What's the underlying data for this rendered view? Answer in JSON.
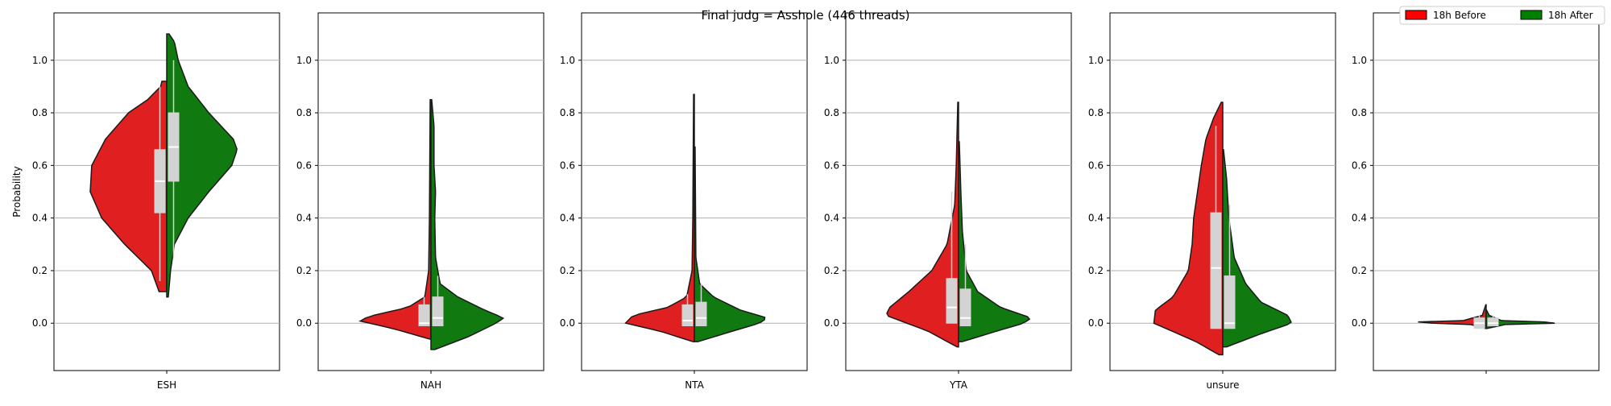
{
  "figure": {
    "suptitle": "Final judg = Asshole (446 threads)"
  },
  "legend": {
    "placement": "top-right",
    "entries": [
      {
        "label": "18h Before",
        "color": "#ff0000"
      },
      {
        "label": "18h After",
        "color": "#008000"
      }
    ]
  },
  "colors": {
    "before_fill": "#e02020",
    "after_fill": "#107a10",
    "box_fill": "#d3d3d3",
    "grid": "#b0b0b0"
  },
  "chart_data": {
    "type": "split-violin",
    "ylabel": "Probability",
    "ylim": [
      -0.18,
      1.18
    ],
    "yticks": [
      "0.0",
      "0.2",
      "0.4",
      "0.6",
      "0.8",
      "1.0"
    ],
    "grid": "horizontal",
    "panels": [
      {
        "category": "ESH",
        "before": {
          "range": [
            0.12,
            0.92
          ],
          "box": {
            "q1": 0.42,
            "median": 0.54,
            "q3": 0.66
          },
          "whisker": [
            0.16,
            0.9
          ],
          "profile": [
            [
              0.02,
              0.02
            ],
            [
              0.12,
              0.1
            ],
            [
              0.2,
              0.2
            ],
            [
              0.3,
              0.55
            ],
            [
              0.4,
              0.85
            ],
            [
              0.5,
              1.0
            ],
            [
              0.6,
              0.98
            ],
            [
              0.7,
              0.8
            ],
            [
              0.8,
              0.5
            ],
            [
              0.85,
              0.25
            ],
            [
              0.9,
              0.08
            ],
            [
              0.97,
              0.02
            ]
          ]
        },
        "after": {
          "range": [
            0.1,
            1.1
          ],
          "box": {
            "q1": 0.54,
            "median": 0.67,
            "q3": 0.8
          },
          "whisker": [
            0.25,
            1.0
          ],
          "profile": [
            [
              0.1,
              0.02
            ],
            [
              0.2,
              0.05
            ],
            [
              0.3,
              0.1
            ],
            [
              0.4,
              0.28
            ],
            [
              0.5,
              0.55
            ],
            [
              0.6,
              0.85
            ],
            [
              0.66,
              0.92
            ],
            [
              0.7,
              0.87
            ],
            [
              0.8,
              0.55
            ],
            [
              0.9,
              0.28
            ],
            [
              1.0,
              0.15
            ],
            [
              1.07,
              0.1
            ],
            [
              1.1,
              0.03
            ]
          ]
        }
      },
      {
        "category": "NAH",
        "before": {
          "range": [
            -0.06,
            0.85
          ],
          "box": {
            "q1": -0.01,
            "median": 0.0,
            "q3": 0.07
          },
          "whisker": [
            -0.01,
            0.1
          ],
          "profile": [
            [
              -0.06,
              0.02
            ],
            [
              -0.02,
              0.5
            ],
            [
              0.01,
              0.95
            ],
            [
              0.03,
              0.75
            ],
            [
              0.06,
              0.3
            ],
            [
              0.1,
              0.08
            ],
            [
              0.2,
              0.03
            ],
            [
              0.4,
              0.02
            ],
            [
              0.85,
              0.01
            ]
          ]
        },
        "after": {
          "range": [
            -0.1,
            0.85
          ],
          "box": {
            "q1": -0.01,
            "median": 0.02,
            "q3": 0.1
          },
          "whisker": [
            -0.01,
            0.18
          ],
          "profile": [
            [
              -0.1,
              0.05
            ],
            [
              -0.05,
              0.5
            ],
            [
              0.0,
              0.85
            ],
            [
              0.02,
              0.95
            ],
            [
              0.05,
              0.7
            ],
            [
              0.1,
              0.35
            ],
            [
              0.15,
              0.12
            ],
            [
              0.25,
              0.06
            ],
            [
              0.4,
              0.05
            ],
            [
              0.5,
              0.06
            ],
            [
              0.6,
              0.04
            ],
            [
              0.75,
              0.04
            ],
            [
              0.85,
              0.01
            ]
          ]
        }
      },
      {
        "category": "NTA",
        "before": {
          "range": [
            -0.07,
            0.87
          ],
          "box": {
            "q1": -0.01,
            "median": 0.01,
            "q3": 0.07
          },
          "whisker": [
            -0.01,
            0.11
          ],
          "profile": [
            [
              -0.07,
              0.02
            ],
            [
              -0.03,
              0.45
            ],
            [
              0.0,
              0.9
            ],
            [
              0.03,
              0.8
            ],
            [
              0.06,
              0.35
            ],
            [
              0.1,
              0.1
            ],
            [
              0.2,
              0.03
            ],
            [
              0.4,
              0.02
            ],
            [
              0.87,
              0.01
            ]
          ]
        },
        "after": {
          "range": [
            -0.07,
            0.67
          ],
          "box": {
            "q1": -0.01,
            "median": 0.02,
            "q3": 0.08
          },
          "whisker": [
            -0.01,
            0.15
          ],
          "profile": [
            [
              -0.07,
              0.05
            ],
            [
              -0.03,
              0.5
            ],
            [
              0.0,
              0.85
            ],
            [
              0.02,
              0.95
            ],
            [
              0.05,
              0.6
            ],
            [
              0.1,
              0.25
            ],
            [
              0.15,
              0.07
            ],
            [
              0.25,
              0.02
            ],
            [
              0.67,
              0.01
            ]
          ]
        }
      },
      {
        "category": "YTA",
        "before": {
          "range": [
            -0.09,
            0.84
          ],
          "box": {
            "q1": 0.0,
            "median": 0.06,
            "q3": 0.17
          },
          "whisker": [
            0.0,
            0.5
          ],
          "profile": [
            [
              -0.09,
              0.02
            ],
            [
              -0.03,
              0.4
            ],
            [
              0.03,
              0.95
            ],
            [
              0.06,
              0.9
            ],
            [
              0.12,
              0.65
            ],
            [
              0.2,
              0.35
            ],
            [
              0.3,
              0.15
            ],
            [
              0.45,
              0.05
            ],
            [
              0.6,
              0.03
            ],
            [
              0.84,
              0.01
            ]
          ]
        },
        "after": {
          "range": [
            -0.07,
            0.69
          ],
          "box": {
            "q1": -0.01,
            "median": 0.02,
            "q3": 0.13
          },
          "whisker": [
            -0.01,
            0.3
          ],
          "profile": [
            [
              -0.07,
              0.05
            ],
            [
              -0.03,
              0.5
            ],
            [
              0.0,
              0.85
            ],
            [
              0.02,
              0.95
            ],
            [
              0.06,
              0.55
            ],
            [
              0.12,
              0.25
            ],
            [
              0.2,
              0.1
            ],
            [
              0.35,
              0.05
            ],
            [
              0.5,
              0.03
            ],
            [
              0.69,
              0.01
            ]
          ]
        }
      },
      {
        "category": "unsure",
        "before": {
          "range": [
            -0.12,
            0.84
          ],
          "box": {
            "q1": -0.02,
            "median": 0.21,
            "q3": 0.42
          },
          "whisker": [
            -0.02,
            0.75
          ],
          "profile": [
            [
              -0.12,
              0.05
            ],
            [
              -0.07,
              0.35
            ],
            [
              0.0,
              0.9
            ],
            [
              0.05,
              0.88
            ],
            [
              0.1,
              0.65
            ],
            [
              0.2,
              0.45
            ],
            [
              0.3,
              0.4
            ],
            [
              0.4,
              0.38
            ],
            [
              0.5,
              0.33
            ],
            [
              0.6,
              0.28
            ],
            [
              0.7,
              0.22
            ],
            [
              0.78,
              0.12
            ],
            [
              0.84,
              0.02
            ]
          ]
        },
        "after": {
          "range": [
            -0.09,
            0.66
          ],
          "box": {
            "q1": -0.02,
            "median": 0.0,
            "q3": 0.18
          },
          "whisker": [
            -0.02,
            0.45
          ],
          "profile": [
            [
              -0.09,
              0.05
            ],
            [
              -0.04,
              0.5
            ],
            [
              0.0,
              0.9
            ],
            [
              0.03,
              0.85
            ],
            [
              0.08,
              0.5
            ],
            [
              0.15,
              0.3
            ],
            [
              0.25,
              0.15
            ],
            [
              0.4,
              0.08
            ],
            [
              0.55,
              0.05
            ],
            [
              0.66,
              0.01
            ]
          ]
        }
      },
      {
        "category": "",
        "before": {
          "range": [
            -0.02,
            0.07
          ],
          "box": {
            "q1": -0.02,
            "median": 0.0,
            "q3": 0.02
          },
          "whisker": [
            -0.02,
            0.03
          ],
          "profile": [
            [
              -0.02,
              0.01
            ],
            [
              -0.005,
              0.2
            ],
            [
              0.0,
              0.7
            ],
            [
              0.005,
              0.9
            ],
            [
              0.01,
              0.3
            ],
            [
              0.03,
              0.05
            ],
            [
              0.07,
              0.005
            ]
          ]
        },
        "after": {
          "range": [
            -0.02,
            0.05
          ],
          "box": {
            "q1": -0.01,
            "median": 0.0,
            "q3": 0.02
          },
          "whisker": [
            -0.01,
            0.03
          ],
          "profile": [
            [
              -0.02,
              0.01
            ],
            [
              -0.005,
              0.25
            ],
            [
              0.0,
              0.9
            ],
            [
              0.005,
              0.75
            ],
            [
              0.01,
              0.2
            ],
            [
              0.03,
              0.04
            ],
            [
              0.05,
              0.005
            ]
          ]
        }
      }
    ]
  }
}
